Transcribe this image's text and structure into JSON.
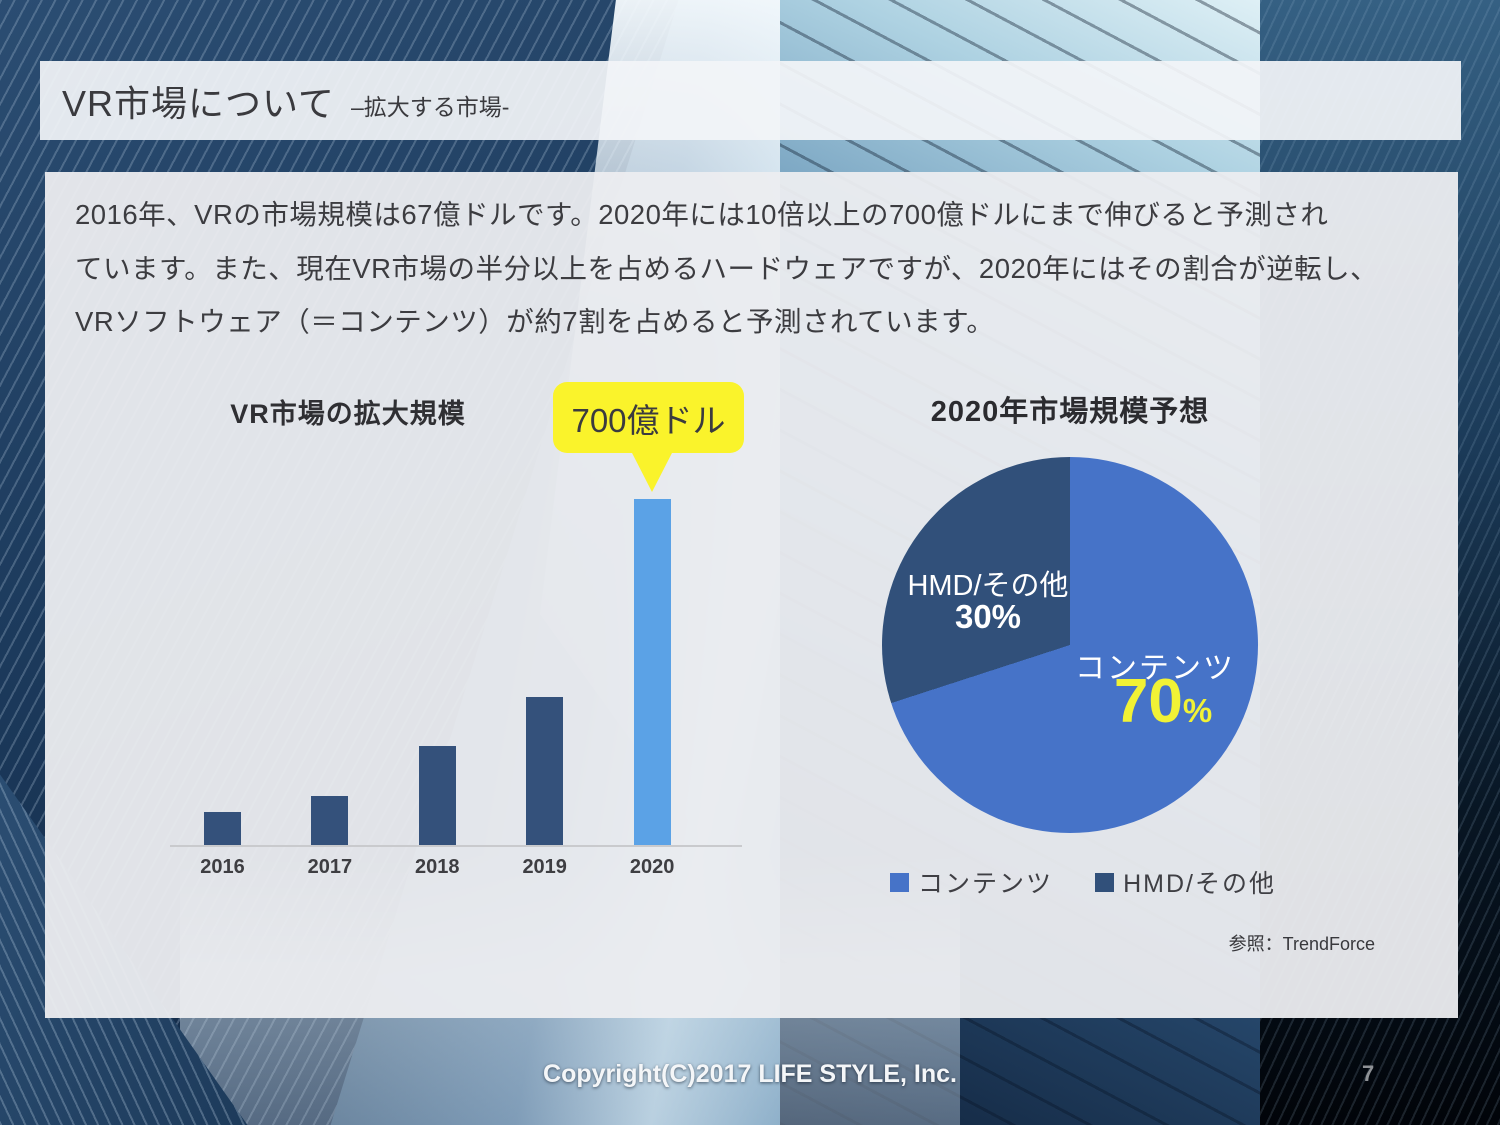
{
  "header": {
    "title": "VR市場について",
    "subtitle": "–拡大する市場-"
  },
  "body": {
    "lines": [
      "2016年、VRの市場規模は67億ドルです。2020年には10倍以上の700億ドルにまで伸びると予測され",
      "ています。また、現在VR市場の半分以上を占めるハードウェアですが、2020年にはその割合が逆転し、",
      "VRソフトウェア（＝コンテンツ）が約7割を占めると予測されています。"
    ]
  },
  "chart_data": [
    {
      "type": "bar",
      "title": "VR市場の拡大規模",
      "categories": [
        "2016",
        "2017",
        "2018",
        "2019",
        "2020"
      ],
      "values": [
        67,
        100,
        200,
        300,
        700
      ],
      "unit": "億ドル",
      "ylim": [
        0,
        700
      ],
      "grid": false,
      "bar_color_default": "#34517B",
      "bar_color_highlight": "#5BA2E6",
      "highlight_index": 4,
      "axis_color": "#C9CACD",
      "annotation": {
        "text": "700億ドル",
        "bubble_color": "#FAF32B",
        "points_to": "2020"
      }
    },
    {
      "type": "pie",
      "title": "2020年市場規模予想",
      "start_angle_deg": 0,
      "slices": [
        {
          "label": "コンテンツ",
          "value": 70,
          "value_text": "70",
          "pct_symbol": "%",
          "color": "#4673C8",
          "value_color": "#F1F235"
        },
        {
          "label": "HMD/その他",
          "value": 30,
          "value_text": "30%",
          "color": "#31507A",
          "value_color": "#FFFFFF"
        }
      ],
      "legend": [
        {
          "label": "コンテンツ",
          "color": "#4673C8"
        },
        {
          "label": "HMD/その他",
          "color": "#31507A"
        }
      ],
      "legend_position": "bottom"
    }
  ],
  "source_note": "参照：TrendForce",
  "footer": {
    "copyright": "Copyright(C)2017 LIFE STYLE, Inc.",
    "page_number": "7"
  }
}
